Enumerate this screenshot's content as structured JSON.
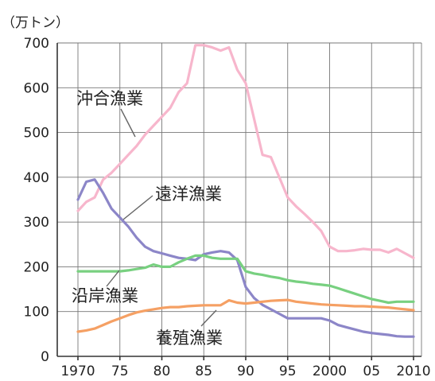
{
  "chart_data": {
    "type": "line",
    "title": "",
    "unit_label": "（万トン）",
    "xlabel": "",
    "ylabel": "",
    "x": [
      1970,
      1971,
      1972,
      1973,
      1974,
      1975,
      1976,
      1977,
      1978,
      1979,
      1980,
      1981,
      1982,
      1983,
      1984,
      1985,
      1986,
      1987,
      1988,
      1989,
      1990,
      1991,
      1992,
      1993,
      1994,
      1995,
      1996,
      1997,
      1998,
      1999,
      2000,
      2001,
      2002,
      2003,
      2004,
      2005,
      2006,
      2007,
      2008,
      2009,
      2010
    ],
    "xlim": [
      1969,
      2011
    ],
    "ylim": [
      0,
      700
    ],
    "grid": true,
    "x_ticks": [
      {
        "value": 1970,
        "label": "1970"
      },
      {
        "value": 1975,
        "label": "75"
      },
      {
        "value": 1980,
        "label": "80"
      },
      {
        "value": 1985,
        "label": "85"
      },
      {
        "value": 1990,
        "label": "90"
      },
      {
        "value": 1995,
        "label": "95"
      },
      {
        "value": 2000,
        "label": "2000"
      },
      {
        "value": 2005,
        "label": "05"
      },
      {
        "value": 2010,
        "label": "2010"
      }
    ],
    "y_ticks": [
      {
        "value": 0,
        "label": "0"
      },
      {
        "value": 100,
        "label": "100"
      },
      {
        "value": 200,
        "label": "200"
      },
      {
        "value": 300,
        "label": "300"
      },
      {
        "value": 400,
        "label": "400"
      },
      {
        "value": 500,
        "label": "500"
      },
      {
        "value": 600,
        "label": "600"
      },
      {
        "value": 700,
        "label": "700"
      }
    ],
    "series": [
      {
        "name": "沖合漁業",
        "color": "#f7b6cc",
        "values": [
          325,
          345,
          355,
          395,
          410,
          430,
          450,
          470,
          495,
          515,
          535,
          555,
          590,
          610,
          695,
          695,
          690,
          683,
          690,
          640,
          610,
          530,
          450,
          445,
          400,
          355,
          335,
          318,
          300,
          280,
          245,
          235,
          235,
          237,
          240,
          238,
          238,
          232,
          240,
          230,
          220
        ]
      },
      {
        "name": "遠洋漁業",
        "color": "#8c86c8",
        "values": [
          350,
          390,
          395,
          365,
          330,
          310,
          290,
          265,
          245,
          235,
          230,
          225,
          220,
          218,
          215,
          228,
          232,
          235,
          232,
          215,
          155,
          130,
          115,
          105,
          95,
          85,
          85,
          85,
          85,
          85,
          80,
          70,
          65,
          60,
          55,
          52,
          50,
          48,
          45,
          44,
          44
        ]
      },
      {
        "name": "沿岸漁業",
        "color": "#78d080",
        "values": [
          190,
          190,
          190,
          190,
          190,
          190,
          192,
          195,
          198,
          205,
          200,
          200,
          210,
          218,
          225,
          225,
          220,
          218,
          218,
          218,
          190,
          185,
          182,
          178,
          175,
          170,
          167,
          165,
          162,
          160,
          158,
          152,
          146,
          140,
          134,
          128,
          124,
          120,
          122,
          122,
          122
        ]
      },
      {
        "name": "養殖漁業",
        "color": "#f5a064",
        "values": [
          55,
          58,
          62,
          70,
          78,
          85,
          92,
          98,
          102,
          105,
          108,
          110,
          110,
          112,
          113,
          114,
          114,
          114,
          125,
          120,
          118,
          120,
          122,
          124,
          125,
          126,
          122,
          120,
          118,
          116,
          115,
          114,
          113,
          112,
          112,
          111,
          110,
          109,
          107,
          105,
          103
        ]
      }
    ]
  }
}
